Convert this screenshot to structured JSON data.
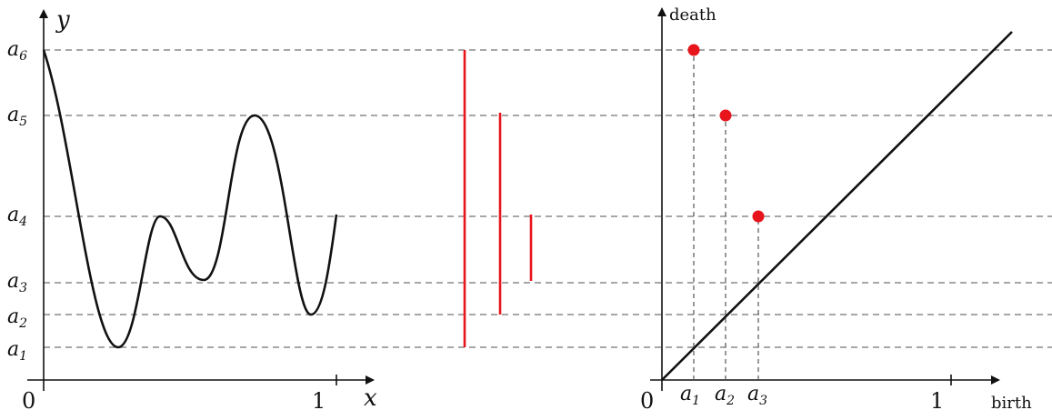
{
  "levels": [
    {
      "id": "a1",
      "base": "a",
      "sub": "1"
    },
    {
      "id": "a2",
      "base": "a",
      "sub": "2"
    },
    {
      "id": "a3",
      "base": "a",
      "sub": "3"
    },
    {
      "id": "a4",
      "base": "a",
      "sub": "4"
    },
    {
      "id": "a5",
      "base": "a",
      "sub": "5"
    },
    {
      "id": "a6",
      "base": "a",
      "sub": "6"
    }
  ],
  "function_plot": {
    "x_label": "x",
    "y_label": "y",
    "origin_label": "0",
    "x_tick_label": "1"
  },
  "barcode": [
    {
      "birth": "a1",
      "death": "a6"
    },
    {
      "birth": "a2",
      "death": "a5"
    },
    {
      "birth": "a3",
      "death": "a4"
    }
  ],
  "persistence_diagram": {
    "x_label": "birth",
    "y_label": "death",
    "origin_label": "0",
    "x_tick_label": "1",
    "points": [
      {
        "birth": "a1",
        "death": "a6"
      },
      {
        "birth": "a2",
        "death": "a5"
      },
      {
        "birth": "a3",
        "death": "a4"
      }
    ]
  },
  "colors": {
    "curve": "#111111",
    "bars": "#e8141b",
    "points": "#e8141b",
    "gridlines": "#8a8a8a"
  }
}
